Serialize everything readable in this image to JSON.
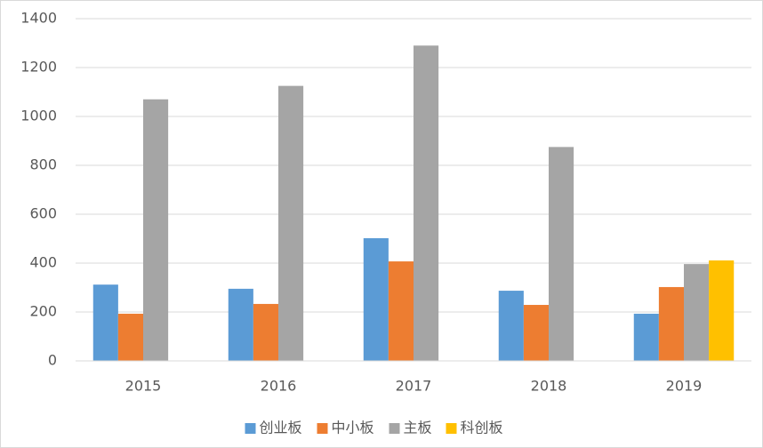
{
  "chart_data": {
    "type": "bar",
    "categories": [
      "2015",
      "2016",
      "2017",
      "2018",
      "2019"
    ],
    "series": [
      {
        "name": "创业板",
        "color": "#5b9bd5",
        "values": [
          312,
          295,
          502,
          287,
          193
        ]
      },
      {
        "name": "中小板",
        "color": "#ed7d31",
        "values": [
          193,
          233,
          407,
          229,
          302
        ]
      },
      {
        "name": "主板",
        "color": "#a5a5a5",
        "values": [
          1070,
          1125,
          1290,
          875,
          396
        ]
      },
      {
        "name": "科创板",
        "color": "#ffc000",
        "values": [
          null,
          null,
          null,
          null,
          411
        ]
      }
    ],
    "ylim": [
      0,
      1400
    ],
    "yticks": [
      0,
      200,
      400,
      600,
      800,
      1000,
      1200,
      1400
    ],
    "grid": true,
    "legend": "bottom"
  }
}
